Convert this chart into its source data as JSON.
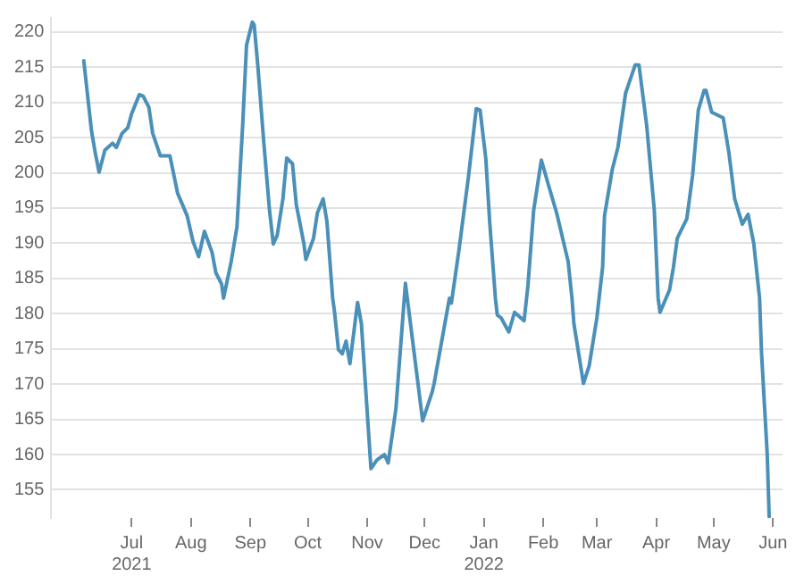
{
  "chart_data": {
    "type": "line",
    "color": "#4a90b8",
    "grid": "y",
    "marker": "none",
    "line_style": "solid",
    "x": [
      "2021-06-06",
      "2021-06-10",
      "2021-06-12",
      "2021-06-14",
      "2021-06-17",
      "2021-06-21",
      "2021-06-23",
      "2021-06-26",
      "2021-06-29",
      "2021-07-01",
      "2021-07-05",
      "2021-07-07",
      "2021-07-10",
      "2021-07-12",
      "2021-07-16",
      "2021-07-21",
      "2021-07-25",
      "2021-07-30",
      "2021-08-02",
      "2021-08-05",
      "2021-08-08",
      "2021-08-12",
      "2021-08-14",
      "2021-08-17",
      "2021-08-18",
      "2021-08-22",
      "2021-08-25",
      "2021-08-28",
      "2021-08-30",
      "2021-09-02",
      "2021-09-03",
      "2021-09-05",
      "2021-09-08",
      "2021-09-11",
      "2021-09-13",
      "2021-09-15",
      "2021-09-18",
      "2021-09-20",
      "2021-09-23",
      "2021-09-25",
      "2021-09-29",
      "2021-09-30",
      "2021-10-04",
      "2021-10-06",
      "2021-10-09",
      "2021-10-11",
      "2021-10-14",
      "2021-10-15",
      "2021-10-17",
      "2021-10-19",
      "2021-10-21",
      "2021-10-23",
      "2021-10-27",
      "2021-10-29",
      "2021-11-03",
      "2021-11-06",
      "2021-11-10",
      "2021-11-12",
      "2021-11-16",
      "2021-11-21",
      "2021-11-30",
      "2021-12-05",
      "2021-12-06",
      "2021-12-14",
      "2021-12-15",
      "2021-12-19",
      "2021-12-24",
      "2021-12-28",
      "2021-12-30",
      "2022-01-02",
      "2022-01-04",
      "2022-01-07",
      "2022-01-08",
      "2022-01-10",
      "2022-01-14",
      "2022-01-17",
      "2022-01-22",
      "2022-01-24",
      "2022-01-27",
      "2022-01-31",
      "2022-02-04",
      "2022-02-08",
      "2022-02-14",
      "2022-02-16",
      "2022-02-17",
      "2022-02-22",
      "2022-02-25",
      "2022-03-01",
      "2022-03-04",
      "2022-03-05",
      "2022-03-09",
      "2022-03-12",
      "2022-03-16",
      "2022-03-21",
      "2022-03-23",
      "2022-03-27",
      "2022-03-31",
      "2022-04-02",
      "2022-04-03",
      "2022-04-08",
      "2022-04-10",
      "2022-04-12",
      "2022-04-17",
      "2022-04-20",
      "2022-04-23",
      "2022-04-26",
      "2022-04-27",
      "2022-04-30",
      "2022-05-06",
      "2022-05-09",
      "2022-05-12",
      "2022-05-16",
      "2022-05-19",
      "2022-05-22",
      "2022-05-25",
      "2022-05-26",
      "2022-05-29",
      "2022-05-30"
    ],
    "values": [
      215.9,
      206.0,
      202.8,
      200.1,
      203.2,
      204.2,
      203.6,
      205.6,
      206.4,
      208.4,
      211.1,
      210.9,
      209.3,
      205.6,
      202.4,
      202.4,
      197.1,
      193.9,
      190.3,
      188.1,
      191.7,
      188.7,
      185.8,
      184.2,
      182.2,
      187.4,
      192.3,
      206.8,
      218.1,
      221.4,
      221.0,
      214.9,
      204.4,
      194.7,
      189.9,
      191.1,
      196.3,
      202.1,
      201.3,
      195.5,
      189.9,
      187.7,
      190.7,
      194.3,
      196.3,
      193.1,
      182.2,
      180.2,
      174.9,
      174.3,
      176.1,
      172.9,
      181.6,
      178.6,
      158.0,
      159.2,
      160.0,
      158.8,
      166.4,
      184.3,
      164.8,
      168.9,
      170.1,
      182.2,
      181.5,
      189.1,
      199.6,
      209.1,
      208.9,
      202.0,
      193.1,
      182.2,
      179.8,
      179.4,
      177.4,
      180.2,
      179.0,
      184.0,
      194.7,
      201.8,
      198.0,
      194.3,
      187.4,
      182.2,
      178.6,
      170.1,
      172.6,
      179.4,
      186.6,
      193.9,
      200.4,
      203.6,
      211.3,
      215.3,
      215.3,
      206.8,
      194.7,
      182.2,
      180.2,
      183.4,
      186.6,
      190.7,
      193.5,
      199.6,
      208.9,
      211.7,
      211.7,
      208.6,
      207.8,
      202.8,
      196.3,
      192.7,
      194.1,
      189.9,
      182.2,
      174.5,
      160.0,
      151.2
    ],
    "xlim": [
      "2021-05-20",
      "2022-06-06"
    ],
    "xticks": [
      {
        "value": "2021-07-01",
        "label": "Jul\n2021"
      },
      {
        "value": "2021-08-01",
        "label": "Aug"
      },
      {
        "value": "2021-09-01",
        "label": "Sep"
      },
      {
        "value": "2021-10-01",
        "label": "Oct"
      },
      {
        "value": "2021-11-01",
        "label": "Nov"
      },
      {
        "value": "2021-12-01",
        "label": "Dec"
      },
      {
        "value": "2022-01-01",
        "label": "Jan\n2022"
      },
      {
        "value": "2022-02-01",
        "label": "Feb"
      },
      {
        "value": "2022-03-01",
        "label": "Mar"
      },
      {
        "value": "2022-04-01",
        "label": "Apr"
      },
      {
        "value": "2022-05-01",
        "label": "May"
      },
      {
        "value": "2022-06-01",
        "label": "Jun"
      }
    ],
    "ylim": [
      151,
      222
    ],
    "yticks": [
      155,
      160,
      165,
      170,
      175,
      180,
      185,
      190,
      195,
      200,
      205,
      210,
      215,
      220
    ]
  }
}
